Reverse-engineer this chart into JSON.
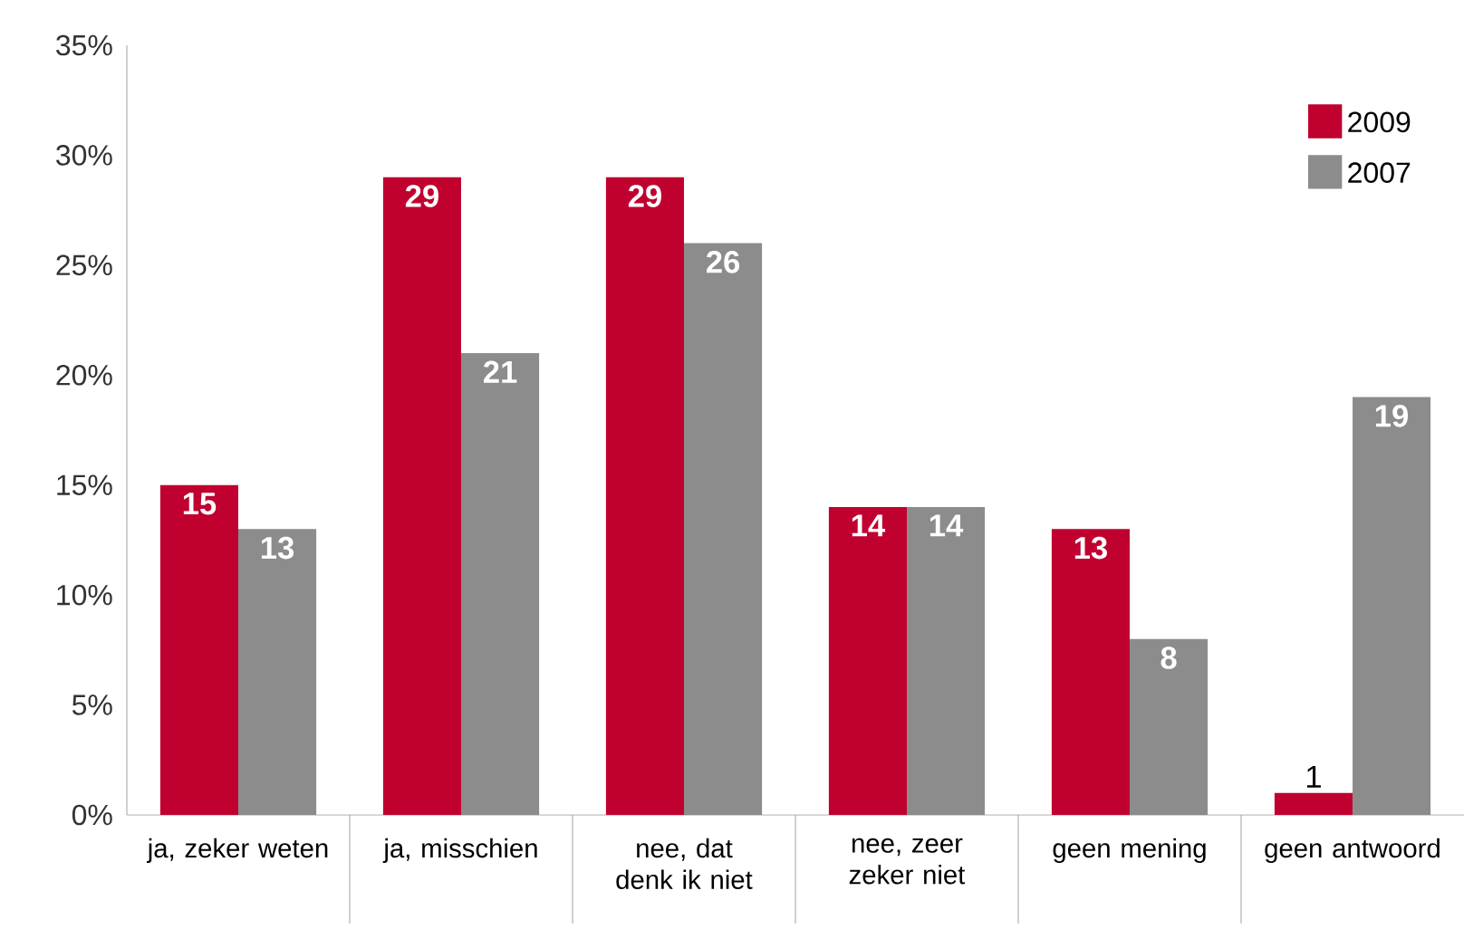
{
  "chart_data": {
    "type": "bar",
    "categories": [
      "ja, zeker weten",
      "ja, misschien",
      "nee, dat denk ik niet",
      "nee, zeer zeker niet",
      "geen mening",
      "geen antwoord"
    ],
    "series": [
      {
        "name": "2009",
        "color": "#c0002f",
        "values": [
          15,
          29,
          29,
          14,
          13,
          1
        ]
      },
      {
        "name": "2007",
        "color": "#8c8c8c",
        "values": [
          13,
          21,
          26,
          14,
          8,
          19
        ]
      }
    ],
    "ylim": [
      0,
      35
    ],
    "yticks": [
      {
        "value": 0,
        "label": "0%"
      },
      {
        "value": 5,
        "label": "5%"
      },
      {
        "value": 10,
        "label": "10%"
      },
      {
        "value": 15,
        "label": "15%"
      },
      {
        "value": 20,
        "label": "20%"
      },
      {
        "value": 25,
        "label": "25%"
      },
      {
        "value": 30,
        "label": "30%"
      },
      {
        "value": 35,
        "label": "35%"
      }
    ],
    "data_labels": true,
    "legend": "top right",
    "grid": false
  }
}
